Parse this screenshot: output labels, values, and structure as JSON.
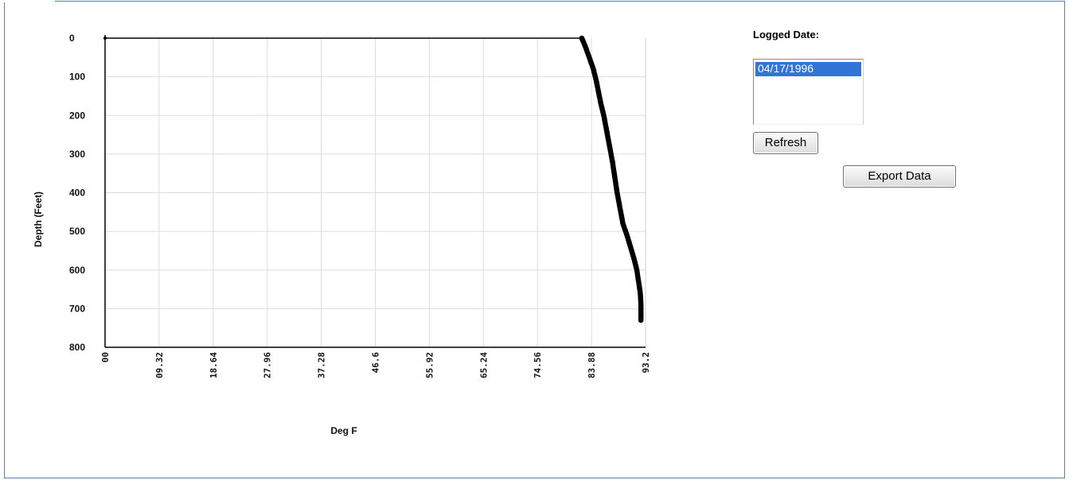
{
  "sidebar": {
    "logged_date_label": "Logged Date:",
    "dates": [
      "04/17/1996"
    ],
    "selected_date": "04/17/1996",
    "refresh_label": "Refresh",
    "export_label": "Export Data"
  },
  "colors": {
    "frame": "#5b7fa8",
    "selection": "#3375d6",
    "series": "#000000",
    "grid": "#dddddd"
  },
  "chart_data": {
    "type": "line",
    "title": "",
    "xlabel": "Deg F",
    "ylabel": "Depth (Feet)",
    "xlim": [
      0,
      93.2
    ],
    "ylim": [
      0,
      800
    ],
    "y_inverted": true,
    "grid": true,
    "legend": "none",
    "x_ticks": [
      "00",
      "09.32",
      "18.64",
      "27.96",
      "37.28",
      "46.6",
      "55.92",
      "65.24",
      "74.56",
      "83.88",
      "93.2"
    ],
    "y_ticks": [
      "0",
      "100",
      "200",
      "300",
      "400",
      "500",
      "600",
      "700",
      "800"
    ],
    "series": [
      {
        "x": [
          0,
          82.2,
          82.5,
          82.9,
          83.5,
          84.2,
          84.7,
          85.1,
          85.5,
          86.0,
          86.5,
          87.0,
          87.5,
          87.9,
          88.3,
          88.8,
          89.3,
          90.0,
          90.6,
          91.2,
          91.7,
          92.0,
          92.3,
          92.4,
          92.4,
          92.4
        ],
        "y": [
          0,
          0,
          10,
          25,
          50,
          80,
          110,
          140,
          170,
          200,
          240,
          280,
          320,
          360,
          400,
          440,
          480,
          510,
          540,
          570,
          600,
          630,
          660,
          690,
          710,
          730
        ]
      }
    ]
  }
}
